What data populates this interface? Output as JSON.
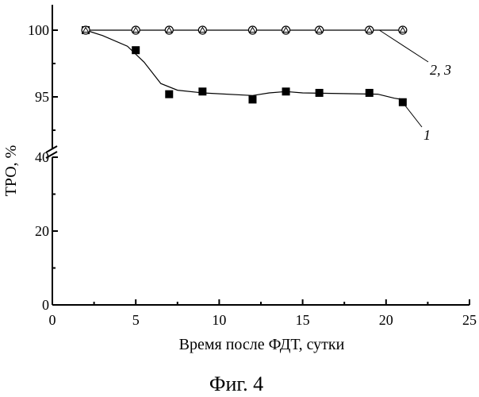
{
  "figure_label": "Фиг. 4",
  "chart_data": {
    "type": "line",
    "xlabel": "Время после ФДТ, сутки",
    "ylabel": "ТРО, %",
    "xlim": [
      0,
      25
    ],
    "x_ticks": [
      0,
      5,
      10,
      15,
      20,
      25
    ],
    "broken_y_axis": true,
    "y_upper_segment": {
      "range": [
        90,
        100
      ],
      "ticks": [
        95,
        100
      ]
    },
    "y_lower_segment": {
      "range": [
        0,
        40
      ],
      "ticks": [
        0,
        20,
        40
      ]
    },
    "grid": false,
    "series": [
      {
        "name": "1",
        "marker": "filled-square",
        "points": [
          {
            "x": 2,
            "y": 100
          },
          {
            "x": 5,
            "y": 98.5
          },
          {
            "x": 7,
            "y": 95.2
          },
          {
            "x": 9,
            "y": 95.4
          },
          {
            "x": 12,
            "y": 94.8
          },
          {
            "x": 14,
            "y": 95.4
          },
          {
            "x": 16,
            "y": 95.3
          },
          {
            "x": 19,
            "y": 95.3
          },
          {
            "x": 21,
            "y": 94.6
          }
        ],
        "fit_curve": [
          {
            "x": 2,
            "y": 100
          },
          {
            "x": 3,
            "y": 99.6
          },
          {
            "x": 4.5,
            "y": 98.8
          },
          {
            "x": 5.5,
            "y": 97.6
          },
          {
            "x": 6.5,
            "y": 96.0
          },
          {
            "x": 7.5,
            "y": 95.5
          },
          {
            "x": 9,
            "y": 95.3
          },
          {
            "x": 12,
            "y": 95.1
          },
          {
            "x": 13,
            "y": 95.3
          },
          {
            "x": 14,
            "y": 95.4
          },
          {
            "x": 15,
            "y": 95.3
          },
          {
            "x": 19.5,
            "y": 95.2
          },
          {
            "x": 20.5,
            "y": 94.9
          },
          {
            "x": 21,
            "y": 94.8
          }
        ]
      },
      {
        "name": "2, 3",
        "marker": "open-circle-with-triangle",
        "points": [
          {
            "x": 2,
            "y": 100
          },
          {
            "x": 5,
            "y": 100
          },
          {
            "x": 7,
            "y": 100
          },
          {
            "x": 9,
            "y": 100
          },
          {
            "x": 12,
            "y": 100
          },
          {
            "x": 14,
            "y": 100
          },
          {
            "x": 16,
            "y": 100
          },
          {
            "x": 19,
            "y": 100
          },
          {
            "x": 21,
            "y": 100
          }
        ]
      }
    ]
  }
}
